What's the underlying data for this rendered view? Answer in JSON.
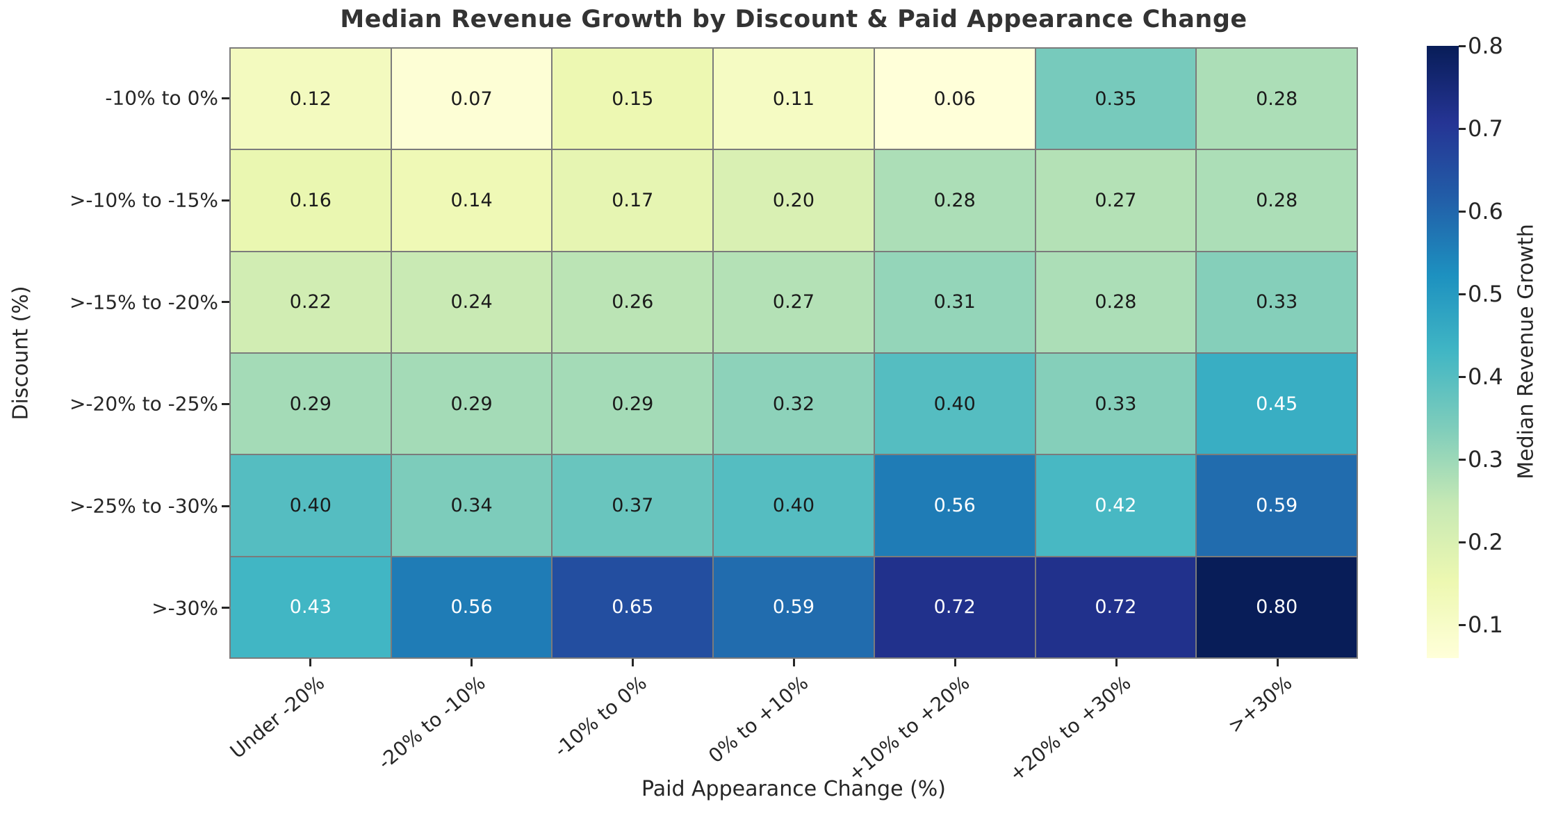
{
  "chart_data": {
    "type": "heatmap",
    "title": "Median Revenue Growth by Discount & Paid Appearance Change",
    "xlabel": "Paid Appearance Change (%)",
    "ylabel": "Discount (%)",
    "x_categories": [
      "Under -20%",
      "-20% to -10%",
      "-10% to 0%",
      "0% to +10%",
      "+10% to +20%",
      "+20% to +30%",
      ">+30%"
    ],
    "y_categories": [
      "-10% to 0%",
      ">-10% to -15%",
      ">-15% to -20%",
      ">-20% to -25%",
      ">-25% to -30%",
      ">-30%"
    ],
    "values": [
      [
        0.12,
        0.07,
        0.15,
        0.11,
        0.06,
        0.35,
        0.28
      ],
      [
        0.16,
        0.14,
        0.17,
        0.2,
        0.28,
        0.27,
        0.28
      ],
      [
        0.22,
        0.24,
        0.26,
        0.27,
        0.31,
        0.28,
        0.33
      ],
      [
        0.29,
        0.29,
        0.29,
        0.32,
        0.4,
        0.33,
        0.45
      ],
      [
        0.4,
        0.34,
        0.37,
        0.4,
        0.56,
        0.42,
        0.59
      ],
      [
        0.43,
        0.56,
        0.65,
        0.59,
        0.72,
        0.72,
        0.8
      ]
    ],
    "value_format_decimals": 2,
    "colorbar": {
      "label": "Median Revenue Growth",
      "ticks": [
        0.8,
        0.7,
        0.6,
        0.5,
        0.4,
        0.3,
        0.2,
        0.1
      ],
      "vmin": 0.06,
      "vmax": 0.8,
      "colormap": "YlGnBu",
      "colormap_stops": [
        "#ffffd9",
        "#edf8b1",
        "#c7e9b4",
        "#7fcdbb",
        "#41b6c4",
        "#1d91c0",
        "#225ea8",
        "#253494",
        "#081d58"
      ]
    },
    "colors": {
      "cell_border": "#7b7b7b",
      "annotation_dark": "#1a1a1a",
      "annotation_light": "#ffffff",
      "tick_text": "#262626",
      "title_text": "#333333"
    },
    "grid_on": true,
    "legend_position": "right-colorbar"
  }
}
